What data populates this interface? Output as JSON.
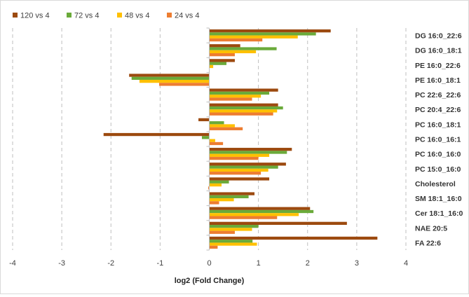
{
  "chart_data": {
    "type": "bar",
    "orientation": "horizontal",
    "xlabel": "log2 (Fold Change)",
    "xlim": [
      -4,
      4
    ],
    "xticks": [
      -4,
      -3,
      -2,
      -1,
      0,
      1,
      2,
      3,
      4
    ],
    "grid": "vertical dashed",
    "legend_position": "top-left",
    "categories": [
      "DG 16:0_22:6",
      "DG 16:0_18:1",
      "PE 16:0_22:6",
      "PE 16:0_18:1",
      "PC 22:6_22:6",
      "PC 20:4_22:6",
      "PC 16:0_18:1",
      "PC 16:0_16:1",
      "PC 16:0_16:0",
      "PC 15:0_16:0",
      "Cholesterol",
      "SM 18:1_16:0",
      "Cer 18:1_16:0",
      "NAE 20:5",
      "FA 22:6"
    ],
    "series": [
      {
        "name": "120 vs 4",
        "color": "#9c4a0f",
        "values": [
          2.47,
          0.63,
          0.52,
          -1.63,
          1.4,
          1.4,
          -0.22,
          -2.15,
          1.68,
          1.56,
          1.22,
          0.92,
          2.05,
          2.8,
          3.42
        ]
      },
      {
        "name": "72 vs 4",
        "color": "#6aaa3a",
        "values": [
          2.17,
          1.37,
          0.35,
          -1.58,
          1.22,
          1.5,
          0.3,
          -0.15,
          1.58,
          1.4,
          0.4,
          0.8,
          2.12,
          1.0,
          0.88
        ]
      },
      {
        "name": "48 vs 4",
        "color": "#ffc000",
        "values": [
          1.8,
          0.95,
          0.08,
          -1.42,
          1.05,
          1.38,
          0.52,
          0.12,
          1.22,
          1.2,
          0.25,
          0.5,
          1.82,
          0.87,
          0.97
        ]
      },
      {
        "name": "24 vs 4",
        "color": "#ed7d31",
        "values": [
          1.08,
          0.52,
          0.0,
          -1.02,
          0.87,
          1.3,
          0.68,
          0.28,
          1.0,
          1.05,
          -0.02,
          0.2,
          1.38,
          0.52,
          0.17
        ]
      }
    ]
  }
}
